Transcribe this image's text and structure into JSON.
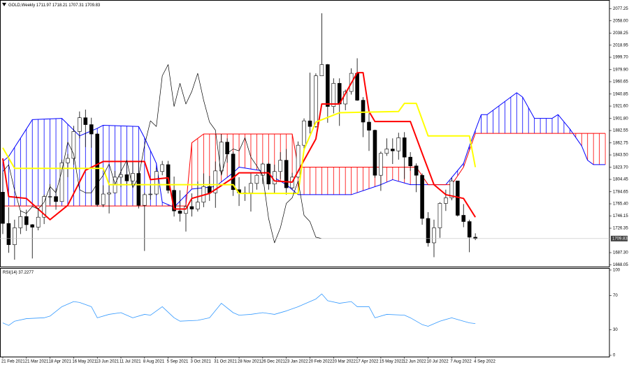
{
  "chart_data": [
    {
      "type": "candlestick",
      "title": "GOLD,Weekly",
      "xlim": [
        -0.47,
        102.7
      ],
      "ylim": [
        1665,
        2089
      ],
      "yticks": [
        2077.25,
        {
          "value": 2058,
          "label": "2058.00"
        },
        2038.25,
        2018.95,
        {
          "value": 1999.7,
          "label": "1999.70"
        },
        {
          "value": 1979.9,
          "label": "1979.90"
        },
        1960.65,
        1940.85,
        {
          "value": 1921.6,
          "label": "1921.60"
        },
        {
          "value": 1901.8,
          "label": "1901.80"
        },
        1882.55,
        1862.75,
        {
          "value": 1843.5,
          "label": "1843.50"
        },
        {
          "value": 1823.7,
          "label": "1823.70"
        },
        1804.45,
        1784.65,
        {
          "value": 1765.4,
          "label": "1765.40"
        },
        1746.15,
        1726.35,
        {
          "value": 1687.3,
          "label": "1687.30"
        },
        1668.05
      ],
      "grid": false,
      "price_line": true,
      "candles": {
        "up_color": "#ffffff",
        "down_color": "#000000",
        "edge_color": "#000000",
        "x": [
          0,
          1,
          2,
          3,
          4,
          5,
          6,
          7,
          8,
          9,
          10,
          11,
          12,
          13,
          14,
          15,
          16,
          17,
          18,
          19,
          20,
          21,
          22,
          23,
          24,
          25,
          26,
          27,
          28,
          29,
          30,
          31,
          32,
          33,
          34,
          35,
          36,
          37,
          38,
          39,
          40,
          41,
          42,
          43,
          44,
          45,
          46,
          47,
          48,
          49,
          50,
          51,
          52,
          53,
          54,
          55,
          56,
          57,
          58,
          59,
          60,
          61,
          62,
          63,
          64,
          65,
          66,
          67,
          68,
          69,
          70,
          71,
          72,
          73,
          74,
          75,
          76,
          77,
          78,
          79,
          80
        ],
        "open": [
          1784,
          1734,
          1700,
          1727,
          1745,
          1732,
          1728,
          1744,
          1777,
          1777,
          1769,
          1831,
          1838,
          1881,
          1903,
          1892,
          1877,
          1764,
          1781,
          1783,
          1808,
          1812,
          1802,
          1814,
          1763,
          1780,
          1781,
          1817,
          1828,
          1787,
          1754,
          1750,
          1761,
          1757,
          1768,
          1793,
          1783,
          1818,
          1864,
          1845,
          1788,
          1783,
          1783,
          1798,
          1811,
          1829,
          1797,
          1817,
          1835,
          1791,
          1808,
          1859,
          1898,
          1889,
          1970,
          1988,
          1921,
          1958,
          1925,
          1945,
          1974,
          1931,
          1896,
          1883,
          1811,
          1846,
          1853,
          1850,
          1871,
          1840,
          1826,
          1811,
          1742,
          1703,
          1727,
          1766,
          1775,
          1802,
          1747,
          1737,
          1711.97
        ],
        "high": [
          1816,
          1760,
          1740,
          1755,
          1756,
          1733,
          1758,
          1780,
          1797,
          1790,
          1836,
          1845,
          1890,
          1913,
          1916,
          1903,
          1879,
          1795,
          1795,
          1818,
          1834,
          1833,
          1832,
          1832,
          1783,
          1795,
          1823,
          1834,
          1834,
          1809,
          1787,
          1764,
          1782,
          1801,
          1814,
          1810,
          1833,
          1877,
          1870,
          1849,
          1808,
          1793,
          1814,
          1813,
          1831,
          1831,
          1828,
          1848,
          1853,
          1815,
          1865,
          1902,
          1975,
          1974,
          2070,
          1989,
          1966,
          1966,
          1948,
          1982,
          1998,
          1936,
          1910,
          1884,
          1849,
          1870,
          1870,
          1879,
          1880,
          1848,
          1830,
          1814,
          1752,
          1740,
          1768,
          1788,
          1807,
          1802,
          1765,
          1740,
          1718.21
        ],
        "low": [
          1717,
          1687,
          1676,
          1717,
          1722,
          1678,
          1723,
          1733,
          1764,
          1756,
          1769,
          1808,
          1828,
          1870,
          1856,
          1855,
          1761,
          1760,
          1750,
          1783,
          1792,
          1794,
          1795,
          1758,
          1690,
          1772,
          1779,
          1811,
          1782,
          1745,
          1737,
          1721,
          1745,
          1753,
          1760,
          1770,
          1759,
          1815,
          1831,
          1778,
          1762,
          1770,
          1753,
          1788,
          1797,
          1788,
          1782,
          1805,
          1780,
          1788,
          1806,
          1851,
          1878,
          1887,
          1970,
          1895,
          1910,
          1890,
          1915,
          1940,
          1930,
          1872,
          1850,
          1807,
          1786,
          1842,
          1829,
          1836,
          1805,
          1818,
          1784,
          1732,
          1697,
          1680,
          1711,
          1754,
          1771,
          1745,
          1728,
          1688,
          1707.31
        ],
        "close": [
          1734,
          1700,
          1727,
          1745,
          1732,
          1728,
          1744,
          1777,
          1777,
          1769,
          1831,
          1838,
          1881,
          1903,
          1892,
          1877,
          1764,
          1781,
          1783,
          1808,
          1812,
          1802,
          1814,
          1763,
          1780,
          1781,
          1817,
          1828,
          1787,
          1754,
          1750,
          1761,
          1757,
          1768,
          1793,
          1783,
          1818,
          1864,
          1845,
          1788,
          1783,
          1783,
          1798,
          1811,
          1829,
          1797,
          1817,
          1835,
          1791,
          1808,
          1859,
          1898,
          1889,
          1970,
          1988,
          1921,
          1958,
          1925,
          1945,
          1974,
          1931,
          1896,
          1883,
          1811,
          1846,
          1853,
          1850,
          1871,
          1840,
          1826,
          1811,
          1742,
          1703,
          1727,
          1766,
          1775,
          1802,
          1747,
          1737,
          1712,
          1709.83
        ]
      },
      "cloud": {
        "span_a": {
          "color": "#0000ff",
          "x": [
            0,
            1,
            4,
            5,
            10,
            13,
            16,
            17,
            23,
            24,
            26,
            27,
            29,
            32,
            36,
            39,
            40,
            44,
            48,
            50,
            59,
            64,
            66,
            69,
            75,
            78,
            79,
            81,
            82,
            87,
            88,
            90,
            93,
            94,
            96,
            98,
            99,
            100,
            102
          ],
          "values": [
            1833,
            1841,
            1885,
            1900,
            1902,
            1874,
            1886,
            1891,
            1889,
            1871,
            1830,
            1768,
            1760,
            1789,
            1793,
            1815,
            1824,
            1818,
            1796,
            1780,
            1780,
            1796,
            1804,
            1796,
            1796,
            1830,
            1858,
            1908,
            1908,
            1943,
            1936,
            1902,
            1902,
            1908,
            1885,
            1858,
            1835,
            1828,
            1828
          ]
        },
        "span_b": {
          "color": "#ff0000",
          "x": [
            0,
            31,
            32,
            34,
            49,
            50,
            70,
            72,
            76,
            78,
            80,
            102
          ],
          "values": [
            1762,
            1762,
            1863,
            1877,
            1877,
            1824,
            1824,
            1796,
            1796,
            1824,
            1878,
            1878
          ]
        }
      },
      "series": [
        {
          "color": "#ff0000",
          "width": 2,
          "x": [
            0,
            1,
            4,
            8,
            11,
            14,
            17,
            24,
            25,
            28,
            29,
            31,
            32,
            35,
            39,
            40,
            45,
            46,
            49,
            51,
            53,
            54,
            57,
            60,
            61,
            62,
            63,
            69,
            71,
            73,
            75,
            78,
            80
          ],
          "values": [
            1838,
            1777,
            1774,
            1740,
            1763,
            1819,
            1833,
            1833,
            1804,
            1807,
            1757,
            1757,
            1774,
            1782,
            1807,
            1815,
            1815,
            1802,
            1800,
            1835,
            1869,
            1925,
            1925,
            1975,
            1975,
            1913,
            1897,
            1897,
            1846,
            1796,
            1780,
            1774,
            1744
          ]
        },
        {
          "color": "#ffff00",
          "width": 2,
          "x": [
            0,
            2,
            17,
            18,
            39,
            40,
            50,
            51,
            53,
            57,
            67,
            68,
            70,
            72,
            79,
            80
          ],
          "values": [
            1855,
            1822,
            1822,
            1796,
            1796,
            1782,
            1782,
            1852,
            1896,
            1911,
            1913,
            1926,
            1926,
            1874,
            1874,
            1824
          ]
        },
        {
          "color": "#000000",
          "width": 0.7,
          "x": [
            0,
            1,
            2,
            3,
            4,
            5,
            6,
            7,
            8,
            9,
            10,
            11,
            12,
            13,
            14,
            15,
            16,
            17,
            18,
            19,
            20,
            21,
            22,
            23,
            24,
            25,
            26,
            27,
            28,
            29,
            30,
            31,
            32,
            33,
            34,
            35,
            36,
            37,
            38,
            39,
            40,
            41,
            42,
            43,
            44,
            45,
            46,
            47,
            48,
            49,
            50,
            51,
            52,
            53,
            54
          ],
          "values": [
            1817,
            1828,
            1787,
            1754,
            1750,
            1761,
            1757,
            1768,
            1793,
            1783,
            1818,
            1864,
            1845,
            1788,
            1783,
            1783,
            1798,
            1811,
            1829,
            1797,
            1817,
            1835,
            1791,
            1808,
            1859,
            1898,
            1889,
            1970,
            1988,
            1921,
            1958,
            1925,
            1945,
            1974,
            1931,
            1896,
            1883,
            1811,
            1846,
            1853,
            1850,
            1871,
            1840,
            1826,
            1811,
            1742,
            1703,
            1727,
            1766,
            1775,
            1802,
            1747,
            1737,
            1712,
            1709.83
          ]
        }
      ]
    },
    {
      "type": "line",
      "title": "RSI(14)",
      "xlim": [
        -0.47,
        102.7
      ],
      "ylim": [
        -1.6,
        101.6
      ],
      "yticks": [
        100,
        70,
        30,
        0
      ],
      "grid": false,
      "xticks": [
        {
          "value": 0,
          "label": "21 Feb 2021"
        },
        {
          "value": 4,
          "label": "21 Mar 2021"
        },
        {
          "value": 8,
          "label": "18 Apr 2021"
        },
        {
          "value": 12,
          "label": "16 May 2021"
        },
        {
          "value": 16,
          "label": "13 Jun 2021"
        },
        {
          "value": 20,
          "label": "11 Jul 2021"
        },
        {
          "value": 24,
          "label": "8 Aug 2021"
        },
        {
          "value": 28,
          "label": "5 Sep 2021"
        },
        {
          "value": 32,
          "label": "3 Oct 2021"
        },
        {
          "value": 36,
          "label": "31 Oct 2021"
        },
        {
          "value": 40,
          "label": "28 Nov 2021"
        },
        {
          "value": 44,
          "label": "26 Dec 2021"
        },
        {
          "value": 48,
          "label": "23 Jan 2022"
        },
        {
          "value": 52,
          "label": "20 Feb 2022"
        },
        {
          "value": 56,
          "label": "20 Mar 2022"
        },
        {
          "value": 60,
          "label": "17 Apr 2022"
        },
        {
          "value": 64,
          "label": "15 May 2022"
        },
        {
          "value": 68,
          "label": "12 Jun 2022"
        },
        {
          "value": 72,
          "label": "10 Jul 2022"
        },
        {
          "value": 76,
          "label": "7 Aug 2022"
        },
        {
          "value": 80,
          "label": "4 Sep 2022"
        }
      ],
      "series": [
        {
          "color": "#3399ff",
          "width": 0.8,
          "x": [
            0,
            1,
            2,
            4,
            7,
            8,
            10,
            12,
            13,
            15,
            16,
            18,
            20,
            22,
            24,
            25,
            26,
            27,
            29,
            30,
            33,
            35,
            37,
            39,
            40,
            42,
            44,
            46,
            48,
            50,
            52,
            53,
            54,
            55,
            57,
            59,
            60,
            62,
            63,
            65,
            68,
            69,
            71,
            72,
            74,
            76,
            78,
            79,
            80
          ],
          "values": [
            38,
            35,
            40,
            43,
            44,
            46,
            57,
            63,
            62,
            57,
            44,
            48,
            50,
            44,
            48,
            47,
            52,
            57,
            44,
            40,
            41,
            44,
            61,
            50,
            47,
            48,
            50,
            48,
            52,
            57,
            63,
            66,
            72,
            64,
            61,
            63,
            57,
            57,
            44,
            48,
            47,
            44,
            36,
            34,
            40,
            44,
            40,
            38,
            37.2277
          ]
        }
      ]
    }
  ]
}
